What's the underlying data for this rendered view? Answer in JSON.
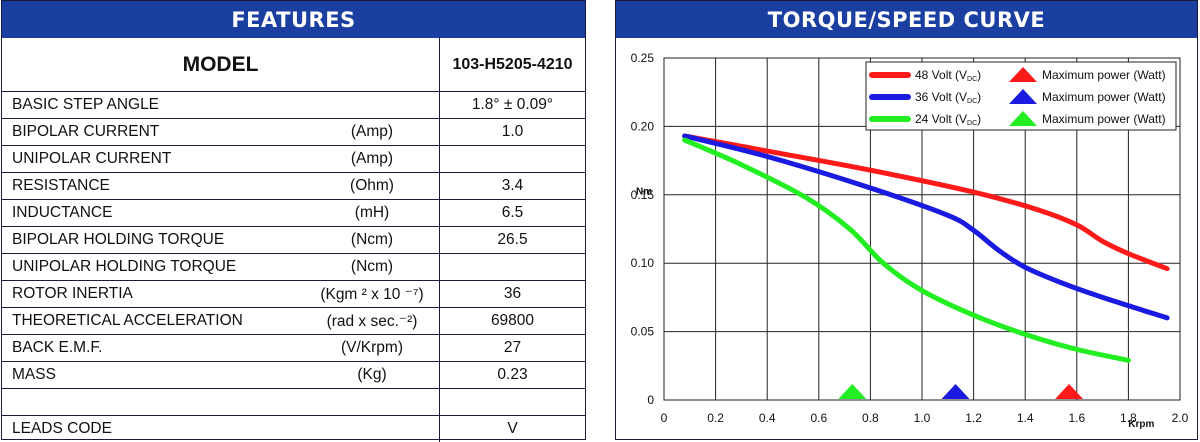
{
  "features": {
    "title": "FEATURES",
    "model": {
      "label": "MODEL",
      "value": "103-H5205-4210"
    },
    "rows": [
      {
        "name": "BASIC STEP ANGLE",
        "unit": "",
        "value": "1.8° ± 0.09°"
      },
      {
        "name": "BIPOLAR CURRENT",
        "unit": "(Amp)",
        "value": "1.0"
      },
      {
        "name": "UNIPOLAR CURRENT",
        "unit": "(Amp)",
        "value": ""
      },
      {
        "name": "RESISTANCE",
        "unit": "(Ohm)",
        "value": "3.4"
      },
      {
        "name": "INDUCTANCE",
        "unit": "(mH)",
        "value": "6.5"
      },
      {
        "name": "BIPOLAR HOLDING TORQUE",
        "unit": "(Ncm)",
        "value": "26.5"
      },
      {
        "name": "UNIPOLAR HOLDING TORQUE",
        "unit": "(Ncm)",
        "value": ""
      },
      {
        "name": "ROTOR INERTIA",
        "unit": "(Kgm ² x 10 ⁻⁷)",
        "value": "36"
      },
      {
        "name": "THEORETICAL ACCELERATION",
        "unit": "(rad x sec.⁻²)",
        "value": "69800"
      },
      {
        "name": "BACK E.M.F.",
        "unit": "(V/Krpm)",
        "value": "27"
      },
      {
        "name": "MASS",
        "unit": "(Kg)",
        "value": "0.23"
      },
      {
        "name": "",
        "unit": "",
        "value": ""
      },
      {
        "name": "LEADS CODE",
        "unit": "",
        "value": "V"
      }
    ]
  },
  "curve_panel": {
    "title": "TORQUE/SPEED CURVE"
  },
  "chart_data": {
    "type": "line",
    "title": "TORQUE/SPEED CURVE",
    "xlabel": "Krpm",
    "ylabel": "Nm",
    "xlim": [
      0,
      2.0
    ],
    "ylim": [
      0,
      0.25
    ],
    "x_ticks": [
      "0",
      "0.2",
      "0.4",
      "0.6",
      "0.8",
      "1.0",
      "1.2",
      "1.4",
      "1.6",
      "1.8",
      "2.0"
    ],
    "y_ticks": [
      "0",
      "0.05",
      "0.10",
      "0.15",
      "0.20",
      "0.25"
    ],
    "grid": true,
    "legend_position": "top-right",
    "max_power_label": "Maximum power (Watt)",
    "series": [
      {
        "name": "48 Volt (V",
        "name_sub": "DC",
        "name_end": ")",
        "color": "#ff1a1a",
        "x": [
          0.08,
          0.4,
          0.8,
          1.2,
          1.45,
          1.6,
          1.7,
          1.8,
          1.95
        ],
        "y": [
          0.193,
          0.182,
          0.168,
          0.152,
          0.139,
          0.128,
          0.116,
          0.107,
          0.096
        ],
        "max_power_x": 1.57
      },
      {
        "name": "36 Volt (V",
        "name_sub": "DC",
        "name_end": ")",
        "color": "#1a1ae0",
        "x": [
          0.08,
          0.4,
          0.8,
          1.1,
          1.2,
          1.3,
          1.4,
          1.55,
          1.7,
          1.95
        ],
        "y": [
          0.193,
          0.178,
          0.155,
          0.135,
          0.124,
          0.109,
          0.097,
          0.085,
          0.075,
          0.06
        ],
        "max_power_x": 1.13
      },
      {
        "name": "24 Volt (V",
        "name_sub": "DC",
        "name_end": ")",
        "color": "#22ee22",
        "x": [
          0.08,
          0.3,
          0.55,
          0.72,
          0.85,
          1.0,
          1.2,
          1.4,
          1.6,
          1.8
        ],
        "y": [
          0.19,
          0.172,
          0.148,
          0.125,
          0.1,
          0.08,
          0.062,
          0.048,
          0.037,
          0.029
        ],
        "max_power_x": 0.73
      }
    ]
  }
}
